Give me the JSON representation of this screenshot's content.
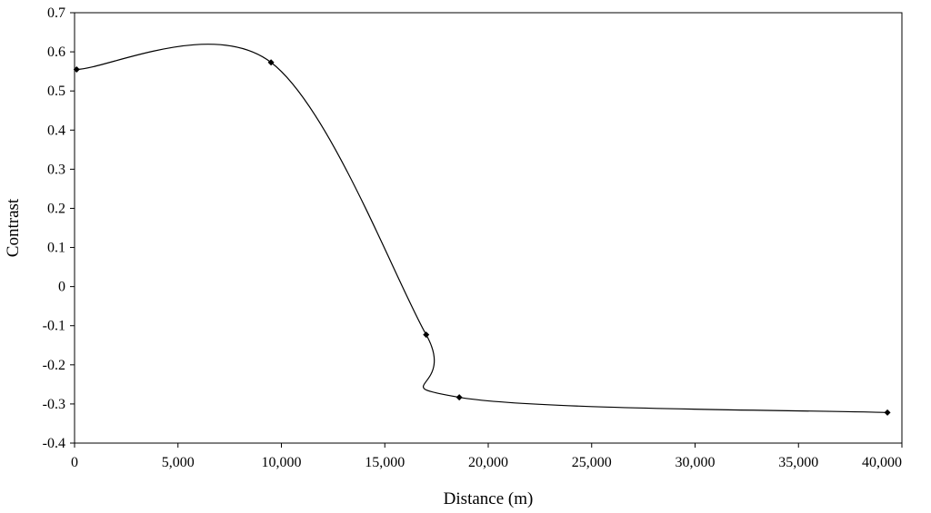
{
  "chart_data": {
    "type": "scatter",
    "title": "",
    "xlabel": "Distance (m)",
    "ylabel": "Contrast",
    "xlim": [
      0,
      40000
    ],
    "ylim": [
      -0.4,
      0.7
    ],
    "x_ticks": [
      0,
      5000,
      10000,
      15000,
      20000,
      25000,
      30000,
      35000,
      40000
    ],
    "x_tick_labels": [
      "0",
      "5,000",
      "10,000",
      "15,000",
      "20,000",
      "25,000",
      "30,000",
      "35,000",
      "40,000"
    ],
    "y_ticks": [
      0.7,
      0.6,
      0.5,
      0.4,
      0.3,
      0.2,
      0.1,
      0,
      -0.1,
      -0.2,
      -0.3,
      -0.4
    ],
    "y_tick_labels": [
      "0.7",
      "0.6",
      "0.5",
      "0.4",
      "0.3",
      "0.2",
      "0.1",
      "0",
      "-0.1",
      "-0.2",
      "-0.3",
      "-0.4"
    ],
    "grid": false,
    "legend": "none",
    "series": [
      {
        "x": [
          100,
          9500,
          17000,
          18600,
          39300
        ],
        "y": [
          0.555,
          0.573,
          -0.123,
          -0.283,
          -0.322
        ],
        "style": "smoothed line with diamond markers",
        "color": "#000000"
      }
    ]
  }
}
